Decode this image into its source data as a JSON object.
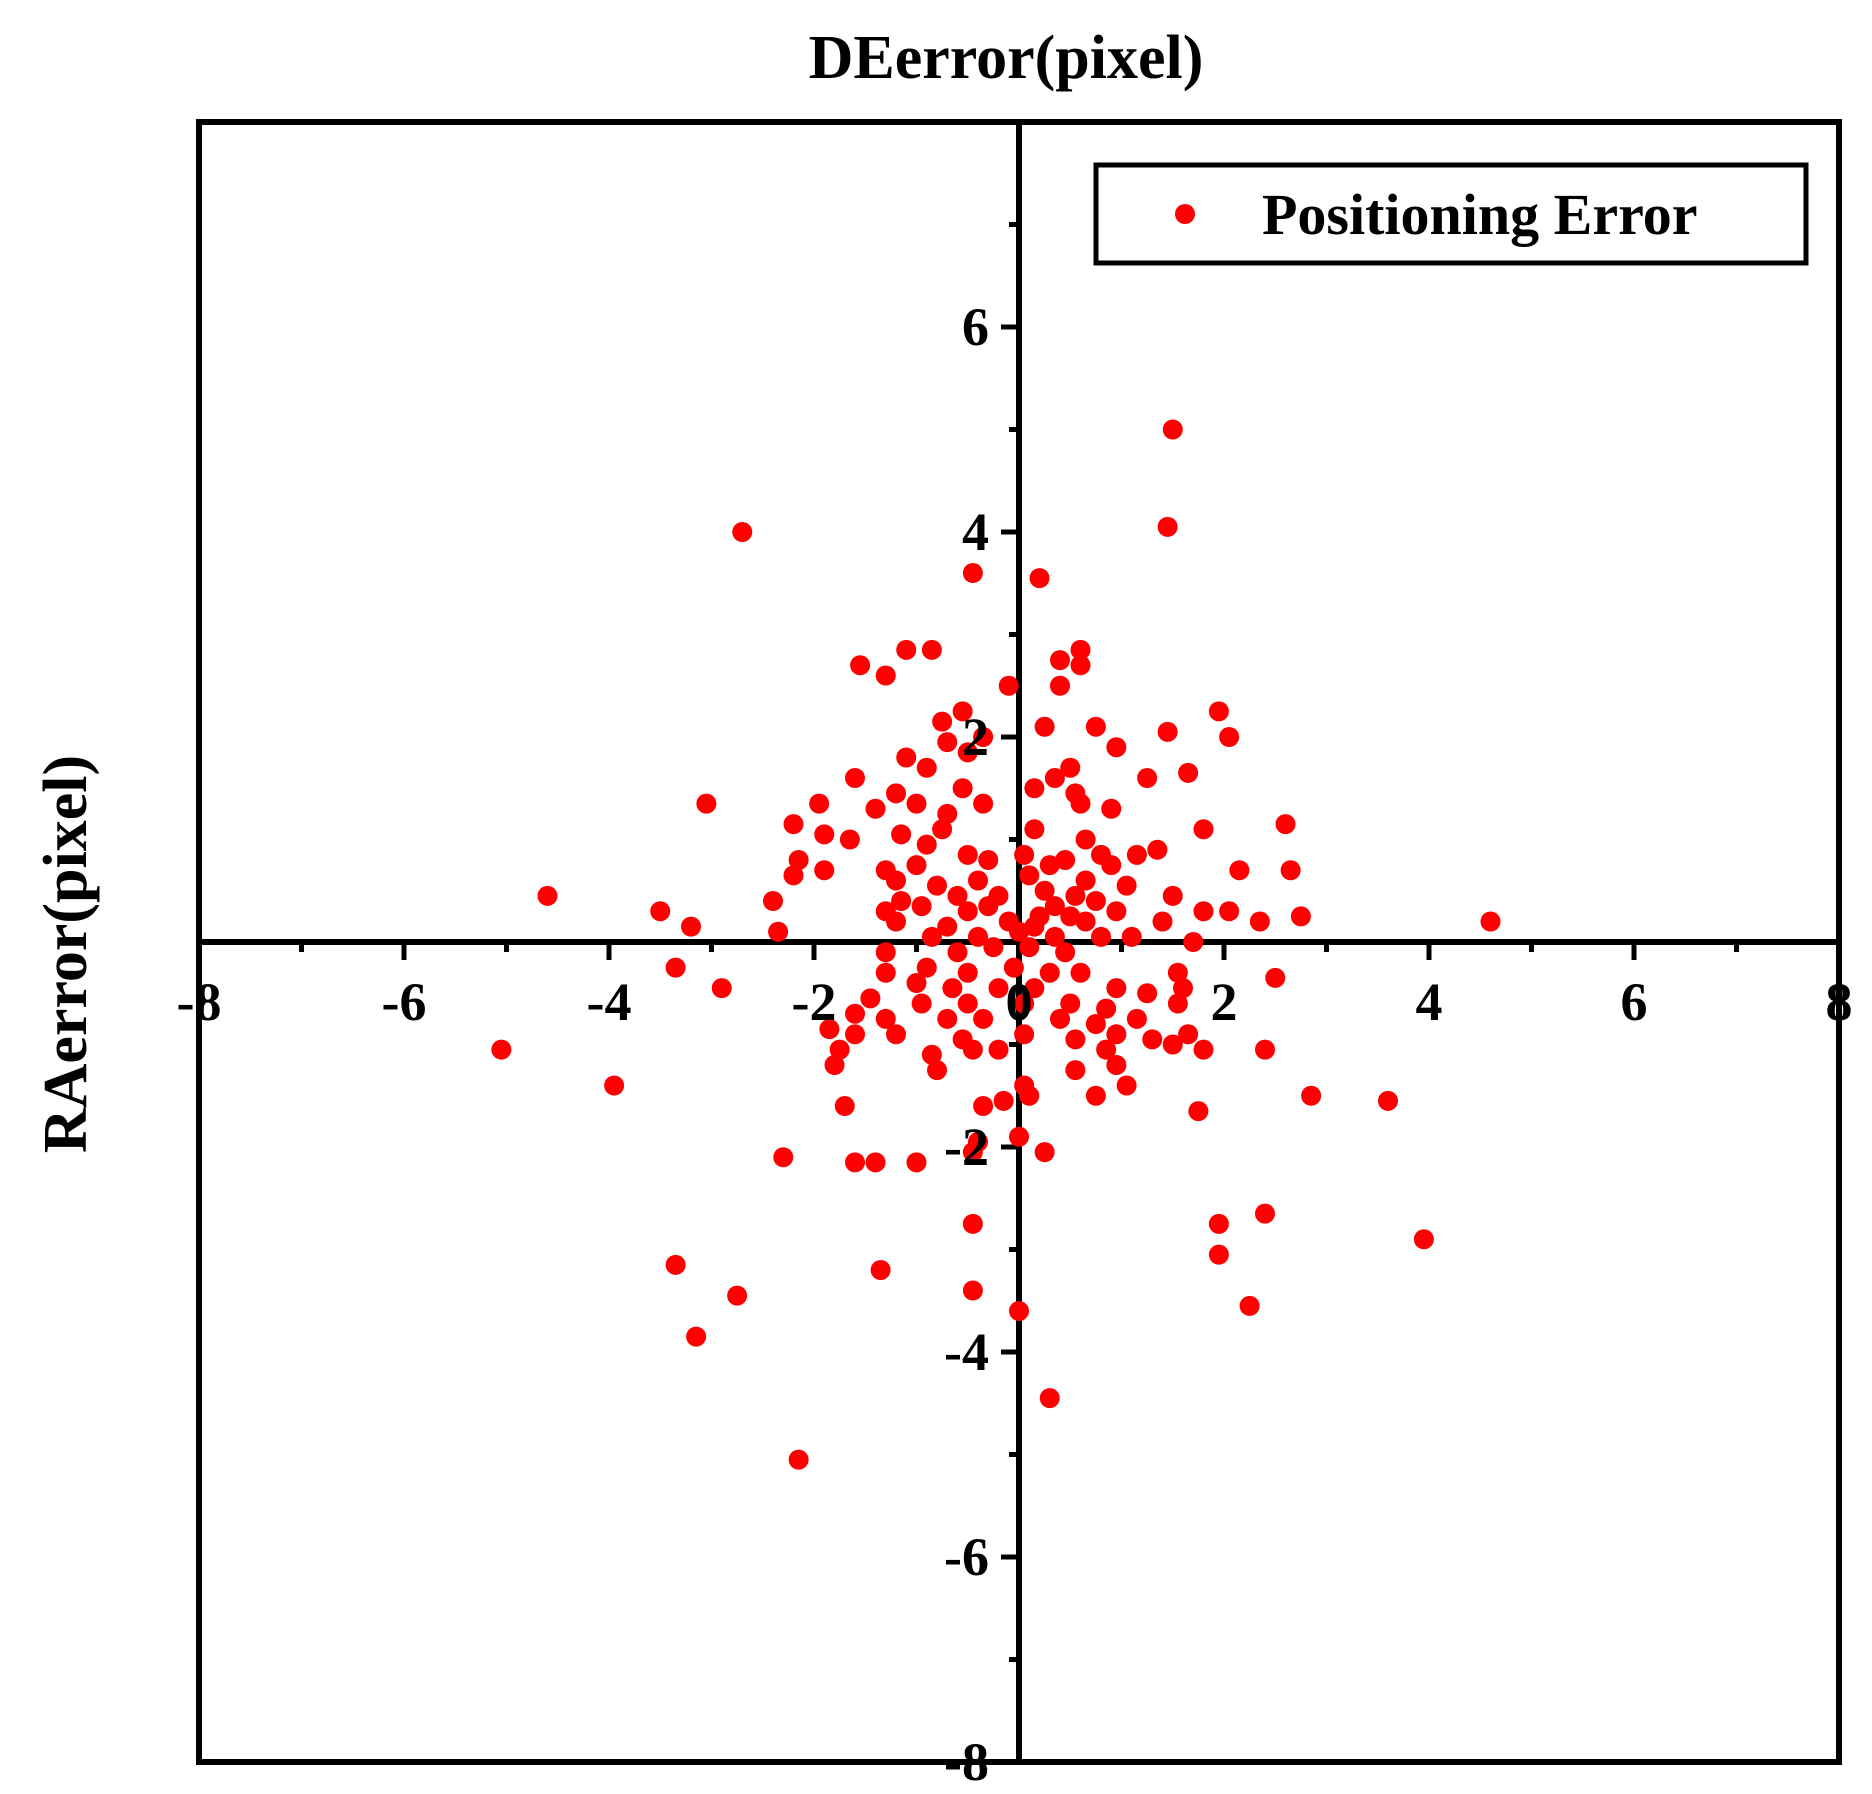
{
  "chart_data": {
    "type": "scatter",
    "title": "DEerror(pixel)",
    "xlabel": "",
    "ylabel": "RAerror(pixel)",
    "xlim": [
      -8,
      8
    ],
    "ylim": [
      -8,
      8
    ],
    "x_ticks": [
      -8,
      -6,
      -4,
      -2,
      0,
      2,
      4,
      6,
      8
    ],
    "y_ticks": [
      -8,
      -6,
      -4,
      -2,
      2,
      4,
      6
    ],
    "x_tick_labels": [
      "-8",
      "-6",
      "-4",
      "-2",
      "0",
      "2",
      "4",
      "6",
      "8"
    ],
    "y_tick_labels": [
      "-8",
      "-6",
      "-4",
      "-2",
      "2",
      "4",
      "6"
    ],
    "axes_through_origin": true,
    "grid": false,
    "legend_position": "top-right",
    "colors": {
      "point": "#ff0000",
      "axis": "#000000"
    },
    "series": [
      {
        "name": "Positioning Error",
        "points": [
          [
            1.5,
            5.0
          ],
          [
            1.45,
            4.05
          ],
          [
            -2.7,
            4.0
          ],
          [
            -0.45,
            3.6
          ],
          [
            0.2,
            3.55
          ],
          [
            -1.1,
            2.85
          ],
          [
            -0.85,
            2.85
          ],
          [
            0.6,
            2.85
          ],
          [
            -1.55,
            2.7
          ],
          [
            -1.3,
            2.6
          ],
          [
            0.4,
            2.75
          ],
          [
            0.6,
            2.7
          ],
          [
            0.4,
            2.5
          ],
          [
            -0.1,
            2.5
          ],
          [
            -0.55,
            2.25
          ],
          [
            1.95,
            2.25
          ],
          [
            -0.75,
            2.15
          ],
          [
            -0.35,
            2.0
          ],
          [
            0.25,
            2.1
          ],
          [
            0.75,
            2.1
          ],
          [
            1.45,
            2.05
          ],
          [
            2.05,
            2.0
          ],
          [
            -0.7,
            1.95
          ],
          [
            -0.5,
            1.85
          ],
          [
            0.95,
            1.9
          ],
          [
            -1.1,
            1.8
          ],
          [
            -0.9,
            1.7
          ],
          [
            0.5,
            1.7
          ],
          [
            0.35,
            1.6
          ],
          [
            1.25,
            1.6
          ],
          [
            1.65,
            1.65
          ],
          [
            -1.6,
            1.6
          ],
          [
            -0.55,
            1.5
          ],
          [
            0.15,
            1.5
          ],
          [
            0.55,
            1.45
          ],
          [
            -1.2,
            1.45
          ],
          [
            -3.05,
            1.35
          ],
          [
            -1.95,
            1.35
          ],
          [
            -1.0,
            1.35
          ],
          [
            -0.35,
            1.35
          ],
          [
            0.6,
            1.35
          ],
          [
            0.9,
            1.3
          ],
          [
            -1.4,
            1.3
          ],
          [
            -0.7,
            1.25
          ],
          [
            -2.2,
            1.15
          ],
          [
            -1.9,
            1.05
          ],
          [
            -1.65,
            1.0
          ],
          [
            -1.15,
            1.05
          ],
          [
            -0.75,
            1.1
          ],
          [
            0.15,
            1.1
          ],
          [
            0.65,
            1.0
          ],
          [
            1.8,
            1.1
          ],
          [
            2.6,
            1.15
          ],
          [
            -0.9,
            0.95
          ],
          [
            -0.5,
            0.85
          ],
          [
            0.05,
            0.85
          ],
          [
            0.45,
            0.8
          ],
          [
            0.8,
            0.85
          ],
          [
            1.15,
            0.85
          ],
          [
            1.35,
            0.9
          ],
          [
            -2.15,
            0.8
          ],
          [
            -1.9,
            0.7
          ],
          [
            -1.3,
            0.7
          ],
          [
            -1.0,
            0.75
          ],
          [
            -0.3,
            0.8
          ],
          [
            0.3,
            0.75
          ],
          [
            0.9,
            0.75
          ],
          [
            2.15,
            0.7
          ],
          [
            2.65,
            0.7
          ],
          [
            -2.2,
            0.65
          ],
          [
            -1.2,
            0.6
          ],
          [
            -0.8,
            0.55
          ],
          [
            -0.4,
            0.6
          ],
          [
            0.1,
            0.65
          ],
          [
            0.65,
            0.6
          ],
          [
            1.05,
            0.55
          ],
          [
            -0.6,
            0.45
          ],
          [
            -0.2,
            0.45
          ],
          [
            0.25,
            0.5
          ],
          [
            0.55,
            0.45
          ],
          [
            -4.6,
            0.45
          ],
          [
            -2.4,
            0.4
          ],
          [
            -1.15,
            0.4
          ],
          [
            -0.95,
            0.35
          ],
          [
            -0.3,
            0.35
          ],
          [
            0.35,
            0.35
          ],
          [
            0.75,
            0.4
          ],
          [
            1.5,
            0.45
          ],
          [
            -3.5,
            0.3
          ],
          [
            -1.3,
            0.3
          ],
          [
            -0.5,
            0.3
          ],
          [
            0.2,
            0.25
          ],
          [
            0.5,
            0.25
          ],
          [
            0.95,
            0.3
          ],
          [
            1.8,
            0.3
          ],
          [
            2.05,
            0.3
          ],
          [
            -3.2,
            0.15
          ],
          [
            -2.35,
            0.1
          ],
          [
            -1.2,
            0.2
          ],
          [
            -0.7,
            0.15
          ],
          [
            -0.1,
            0.2
          ],
          [
            0.15,
            0.15
          ],
          [
            0.65,
            0.2
          ],
          [
            1.4,
            0.2
          ],
          [
            2.35,
            0.2
          ],
          [
            2.75,
            0.25
          ],
          [
            4.6,
            0.2
          ],
          [
            -0.85,
            0.05
          ],
          [
            -0.4,
            0.05
          ],
          [
            0.0,
            0.1
          ],
          [
            0.35,
            0.05
          ],
          [
            0.8,
            0.05
          ],
          [
            1.1,
            0.05
          ],
          [
            1.7,
            0.0
          ],
          [
            -1.3,
            -0.1
          ],
          [
            -0.6,
            -0.1
          ],
          [
            -0.25,
            -0.05
          ],
          [
            0.1,
            -0.05
          ],
          [
            0.45,
            -0.1
          ],
          [
            -1.3,
            -0.3
          ],
          [
            -0.9,
            -0.25
          ],
          [
            -0.5,
            -0.3
          ],
          [
            -0.05,
            -0.25
          ],
          [
            0.3,
            -0.3
          ],
          [
            0.6,
            -0.3
          ],
          [
            1.55,
            -0.3
          ],
          [
            2.5,
            -0.35
          ],
          [
            -3.35,
            -0.25
          ],
          [
            -1.0,
            -0.4
          ],
          [
            -0.65,
            -0.45
          ],
          [
            -0.2,
            -0.45
          ],
          [
            0.15,
            -0.45
          ],
          [
            0.95,
            -0.45
          ],
          [
            1.25,
            -0.5
          ],
          [
            1.6,
            -0.45
          ],
          [
            -2.9,
            -0.45
          ],
          [
            -1.45,
            -0.55
          ],
          [
            -0.95,
            -0.6
          ],
          [
            -0.5,
            -0.6
          ],
          [
            0.05,
            -0.6
          ],
          [
            0.5,
            -0.6
          ],
          [
            0.85,
            -0.65
          ],
          [
            1.55,
            -0.6
          ],
          [
            -1.6,
            -0.7
          ],
          [
            -1.3,
            -0.75
          ],
          [
            -0.7,
            -0.75
          ],
          [
            -0.35,
            -0.75
          ],
          [
            0.4,
            -0.75
          ],
          [
            0.75,
            -0.8
          ],
          [
            1.15,
            -0.75
          ],
          [
            -1.85,
            -0.85
          ],
          [
            -1.6,
            -0.9
          ],
          [
            -1.2,
            -0.9
          ],
          [
            -0.55,
            -0.95
          ],
          [
            0.05,
            -0.9
          ],
          [
            0.55,
            -0.95
          ],
          [
            0.95,
            -0.9
          ],
          [
            1.3,
            -0.95
          ],
          [
            1.65,
            -0.9
          ],
          [
            -5.05,
            -1.05
          ],
          [
            -1.75,
            -1.05
          ],
          [
            -0.85,
            -1.1
          ],
          [
            -0.45,
            -1.05
          ],
          [
            -0.2,
            -1.05
          ],
          [
            0.85,
            -1.05
          ],
          [
            1.5,
            -1.0
          ],
          [
            1.8,
            -1.05
          ],
          [
            2.4,
            -1.05
          ],
          [
            -1.8,
            -1.2
          ],
          [
            -0.8,
            -1.25
          ],
          [
            0.55,
            -1.25
          ],
          [
            0.95,
            -1.2
          ],
          [
            -3.95,
            -1.4
          ],
          [
            1.05,
            -1.4
          ],
          [
            0.05,
            -1.4
          ],
          [
            0.75,
            -1.5
          ],
          [
            -0.15,
            -1.55
          ],
          [
            0.1,
            -1.5
          ],
          [
            2.85,
            -1.5
          ],
          [
            3.6,
            -1.55
          ],
          [
            -1.7,
            -1.6
          ],
          [
            -0.35,
            -1.6
          ],
          [
            1.75,
            -1.65
          ],
          [
            -0.4,
            -1.95
          ],
          [
            -0.45,
            -2.05
          ],
          [
            0.0,
            -1.9
          ],
          [
            0.25,
            -2.05
          ],
          [
            -2.3,
            -2.1
          ],
          [
            -1.6,
            -2.15
          ],
          [
            -1.4,
            -2.15
          ],
          [
            -1.0,
            -2.15
          ],
          [
            -0.45,
            -2.75
          ],
          [
            1.95,
            -2.75
          ],
          [
            2.4,
            -2.65
          ],
          [
            3.95,
            -2.9
          ],
          [
            -3.35,
            -3.15
          ],
          [
            -1.35,
            -3.2
          ],
          [
            1.95,
            -3.05
          ],
          [
            -2.75,
            -3.45
          ],
          [
            -0.45,
            -3.4
          ],
          [
            0.0,
            -3.6
          ],
          [
            2.25,
            -3.55
          ],
          [
            -3.15,
            -3.85
          ],
          [
            0.3,
            -4.45
          ],
          [
            -2.15,
            -5.05
          ]
        ]
      }
    ]
  }
}
